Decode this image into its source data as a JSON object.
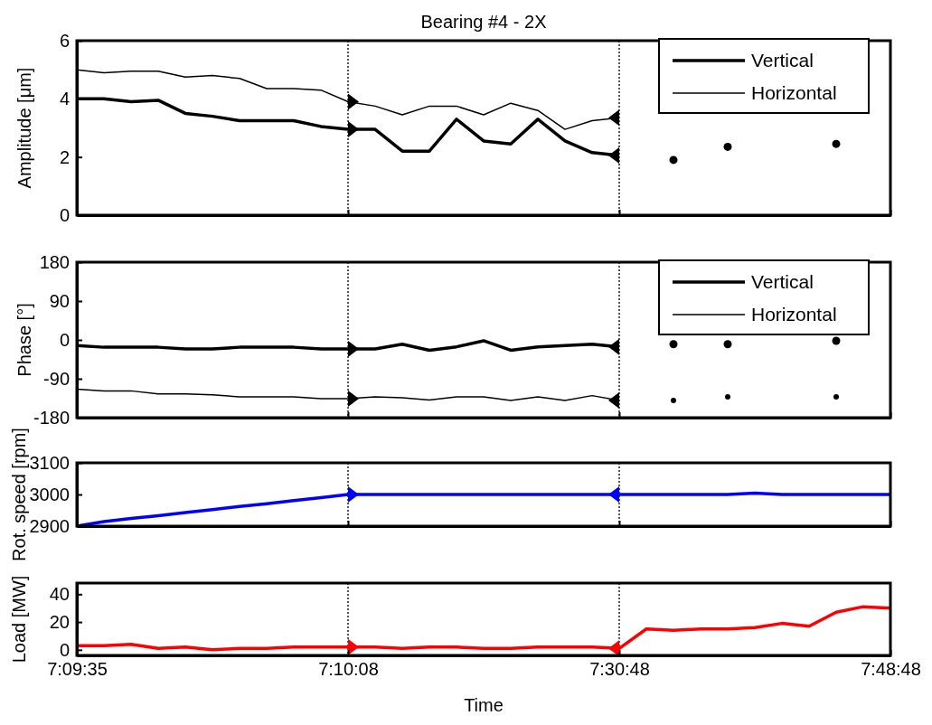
{
  "chart_data": [
    {
      "type": "line",
      "title": "Bearing #4 - 2X",
      "ylabel": "Amplitude [μm]",
      "ylim": [
        0,
        6
      ],
      "yticks": [
        0,
        2,
        4,
        6
      ],
      "tick_labels": "y",
      "legend": "top right",
      "categories": [
        "7:09:35",
        null,
        null,
        null,
        null,
        null,
        null,
        null,
        null,
        null,
        "7:10:08",
        null,
        null,
        null,
        null,
        null,
        null,
        null,
        null,
        null,
        "7:30:48",
        null,
        null,
        null,
        null,
        null,
        null,
        null,
        null,
        null,
        "7:48:48"
      ],
      "ref_lines": [
        {
          "axis": "x",
          "value": "7:10:08",
          "color": "#000000",
          "line_style": "dotted"
        },
        {
          "axis": "x",
          "value": "7:30:48",
          "color": "#000000",
          "line_style": "dotted"
        }
      ],
      "series": [
        {
          "name": "Vertical",
          "color": "#000000",
          "values": [
            4.0,
            4.0,
            3.9,
            3.95,
            3.5,
            3.4,
            3.25,
            3.25,
            3.25,
            3.05,
            2.95,
            2.95,
            2.2,
            2.2,
            3.3,
            2.55,
            2.45,
            3.3,
            2.55,
            2.15,
            2.05,
            null,
            null,
            null,
            null,
            null,
            null,
            null,
            null,
            null,
            null
          ]
        },
        {
          "name": "Horizontal",
          "color": "#000000",
          "values": [
            5.0,
            4.9,
            4.95,
            4.95,
            4.75,
            4.8,
            4.7,
            4.35,
            4.35,
            4.3,
            3.9,
            3.75,
            3.45,
            3.75,
            3.75,
            3.45,
            3.85,
            3.6,
            2.95,
            3.25,
            3.35,
            null,
            null,
            null,
            null,
            null,
            null,
            null,
            null,
            null,
            null
          ]
        },
        {
          "type": "scatter",
          "marker": "triangle",
          "color": "#000000",
          "values": [
            null,
            null,
            null,
            null,
            null,
            null,
            null,
            null,
            null,
            null,
            2.95,
            null,
            null,
            null,
            null,
            null,
            null,
            null,
            null,
            null,
            2.05,
            null,
            null,
            null,
            null,
            null,
            null,
            null,
            null,
            null,
            null
          ]
        },
        {
          "type": "scatter",
          "marker": "triangle",
          "color": "#000000",
          "values": [
            null,
            null,
            null,
            null,
            null,
            null,
            null,
            null,
            null,
            null,
            3.9,
            null,
            null,
            null,
            null,
            null,
            null,
            null,
            null,
            null,
            3.35,
            null,
            null,
            null,
            null,
            null,
            null,
            null,
            null,
            null,
            null
          ]
        },
        {
          "type": "scatter",
          "marker": "circle",
          "color": "#000000",
          "values": [
            null,
            null,
            null,
            null,
            null,
            null,
            null,
            null,
            null,
            null,
            null,
            null,
            null,
            null,
            null,
            null,
            null,
            null,
            null,
            null,
            null,
            null,
            1.9,
            null,
            2.35,
            null,
            null,
            null,
            2.45,
            null,
            null
          ]
        }
      ]
    },
    {
      "type": "line",
      "ylabel": "Phase [°]",
      "ylim": [
        -180,
        180
      ],
      "yticks": [
        -180,
        -90,
        0,
        90,
        180
      ],
      "tick_labels": "y",
      "legend": "top right",
      "categories": [
        "7:09:35",
        null,
        null,
        null,
        null,
        null,
        null,
        null,
        null,
        null,
        "7:10:08",
        null,
        null,
        null,
        null,
        null,
        null,
        null,
        null,
        null,
        "7:30:48",
        null,
        null,
        null,
        null,
        null,
        null,
        null,
        null,
        null,
        "7:48:48"
      ],
      "ref_lines": [
        {
          "axis": "x",
          "value": "7:10:08",
          "color": "#000000",
          "line_style": "dotted"
        },
        {
          "axis": "x",
          "value": "7:30:48",
          "color": "#000000",
          "line_style": "dotted"
        }
      ],
      "series": [
        {
          "name": "Vertical",
          "color": "#000000",
          "values": [
            -13,
            -17,
            -17,
            -17,
            -21,
            -21,
            -17,
            -17,
            -17,
            -21,
            -21,
            -21,
            -10,
            -24,
            -16,
            -2,
            -24,
            -16,
            -13,
            -10,
            -16,
            null,
            null,
            null,
            null,
            null,
            null,
            null,
            null,
            null,
            null
          ]
        },
        {
          "name": "Horizontal",
          "color": "#000000",
          "values": [
            -114,
            -118,
            -118,
            -125,
            -125,
            -127,
            -132,
            -132,
            -132,
            -136,
            -136,
            -132,
            -134,
            -139,
            -132,
            -132,
            -140,
            -132,
            -140,
            -129,
            -140,
            null,
            null,
            null,
            null,
            null,
            null,
            null,
            null,
            null,
            null
          ]
        },
        {
          "type": "scatter",
          "marker": "triangle",
          "color": "#000000",
          "values": [
            null,
            null,
            null,
            null,
            null,
            null,
            null,
            null,
            null,
            null,
            -21,
            null,
            null,
            null,
            null,
            null,
            null,
            null,
            null,
            null,
            -16,
            null,
            null,
            null,
            null,
            null,
            null,
            null,
            null,
            null,
            null
          ]
        },
        {
          "type": "scatter",
          "marker": "triangle",
          "color": "#000000",
          "values": [
            null,
            null,
            null,
            null,
            null,
            null,
            null,
            null,
            null,
            null,
            -136,
            null,
            null,
            null,
            null,
            null,
            null,
            null,
            null,
            null,
            -140,
            null,
            null,
            null,
            null,
            null,
            null,
            null,
            null,
            null,
            null
          ]
        },
        {
          "type": "scatter",
          "marker": "circle",
          "color": "#000000",
          "values": [
            null,
            null,
            null,
            null,
            null,
            null,
            null,
            null,
            null,
            null,
            null,
            null,
            null,
            null,
            null,
            null,
            null,
            null,
            null,
            null,
            null,
            null,
            -10,
            null,
            -10,
            null,
            null,
            null,
            -2,
            null,
            null
          ]
        },
        {
          "type": "scatter",
          "marker": "circle",
          "color": "#000000",
          "values": [
            null,
            null,
            null,
            null,
            null,
            null,
            null,
            null,
            null,
            null,
            null,
            null,
            null,
            null,
            null,
            null,
            null,
            null,
            null,
            null,
            null,
            null,
            -140,
            null,
            -132,
            null,
            null,
            null,
            -132,
            null,
            null
          ]
        }
      ]
    },
    {
      "type": "line",
      "ylabel": "Rot. speed [rpm]",
      "ylim": [
        2900,
        3100
      ],
      "yticks": [
        2900,
        3000,
        3100
      ],
      "tick_labels": "y",
      "categories": [
        "7:09:35",
        null,
        null,
        null,
        null,
        null,
        null,
        null,
        null,
        null,
        "7:10:08",
        null,
        null,
        null,
        null,
        null,
        null,
        null,
        null,
        null,
        "7:30:48",
        null,
        null,
        null,
        null,
        null,
        null,
        null,
        null,
        null,
        "7:48:48"
      ],
      "ref_lines": [
        {
          "axis": "x",
          "value": "7:10:08",
          "color": "#000000",
          "line_style": "dotted"
        },
        {
          "axis": "x",
          "value": "7:30:48",
          "color": "#000000",
          "line_style": "dotted"
        }
      ],
      "series": [
        {
          "color": "#0000ff",
          "values": [
            2900,
            2914,
            2924,
            2933,
            2943,
            2952,
            2962,
            2971,
            2981,
            2990,
            3000,
            3000,
            3000,
            3000,
            3000,
            3000,
            3000,
            3000,
            3000,
            3000,
            3000,
            3000,
            3000,
            3000,
            3000,
            3004,
            3000,
            3000,
            3000,
            3000,
            3000
          ]
        },
        {
          "type": "scatter",
          "marker": "triangle",
          "color": "#0000ff",
          "values": [
            null,
            null,
            null,
            null,
            null,
            null,
            null,
            null,
            null,
            null,
            3000,
            null,
            null,
            null,
            null,
            null,
            null,
            null,
            null,
            null,
            3000,
            null,
            null,
            null,
            null,
            null,
            null,
            null,
            null,
            null,
            null
          ]
        }
      ]
    },
    {
      "type": "line",
      "ylabel": "Load [MW]",
      "xlabel": "Time",
      "ylim": [
        -4,
        48
      ],
      "yticks": [
        0,
        20,
        40
      ],
      "categories": [
        "7:09:35",
        null,
        null,
        null,
        null,
        null,
        null,
        null,
        null,
        null,
        "7:10:08",
        null,
        null,
        null,
        null,
        null,
        null,
        null,
        null,
        null,
        "7:30:48",
        null,
        null,
        null,
        null,
        null,
        null,
        null,
        null,
        null,
        "7:48:48"
      ],
      "ref_lines": [
        {
          "axis": "x",
          "value": "7:10:08",
          "color": "#000000",
          "line_style": "dotted"
        },
        {
          "axis": "x",
          "value": "7:30:48",
          "color": "#000000",
          "line_style": "dotted"
        }
      ],
      "series": [
        {
          "color": "#ff0000",
          "values": [
            3,
            3,
            4,
            1,
            2,
            0,
            1,
            1,
            2,
            2,
            2,
            2,
            1,
            2,
            2,
            1,
            1,
            2,
            2,
            2,
            1,
            15,
            14,
            15,
            15,
            16,
            19,
            17,
            27,
            31,
            30
          ]
        },
        {
          "type": "scatter",
          "marker": "triangle",
          "color": "#ff0000",
          "values": [
            null,
            null,
            null,
            null,
            null,
            null,
            null,
            null,
            null,
            null,
            2,
            null,
            null,
            null,
            null,
            null,
            null,
            null,
            null,
            null,
            1,
            null,
            null,
            null,
            null,
            null,
            null,
            null,
            null,
            null,
            null
          ]
        }
      ]
    }
  ]
}
